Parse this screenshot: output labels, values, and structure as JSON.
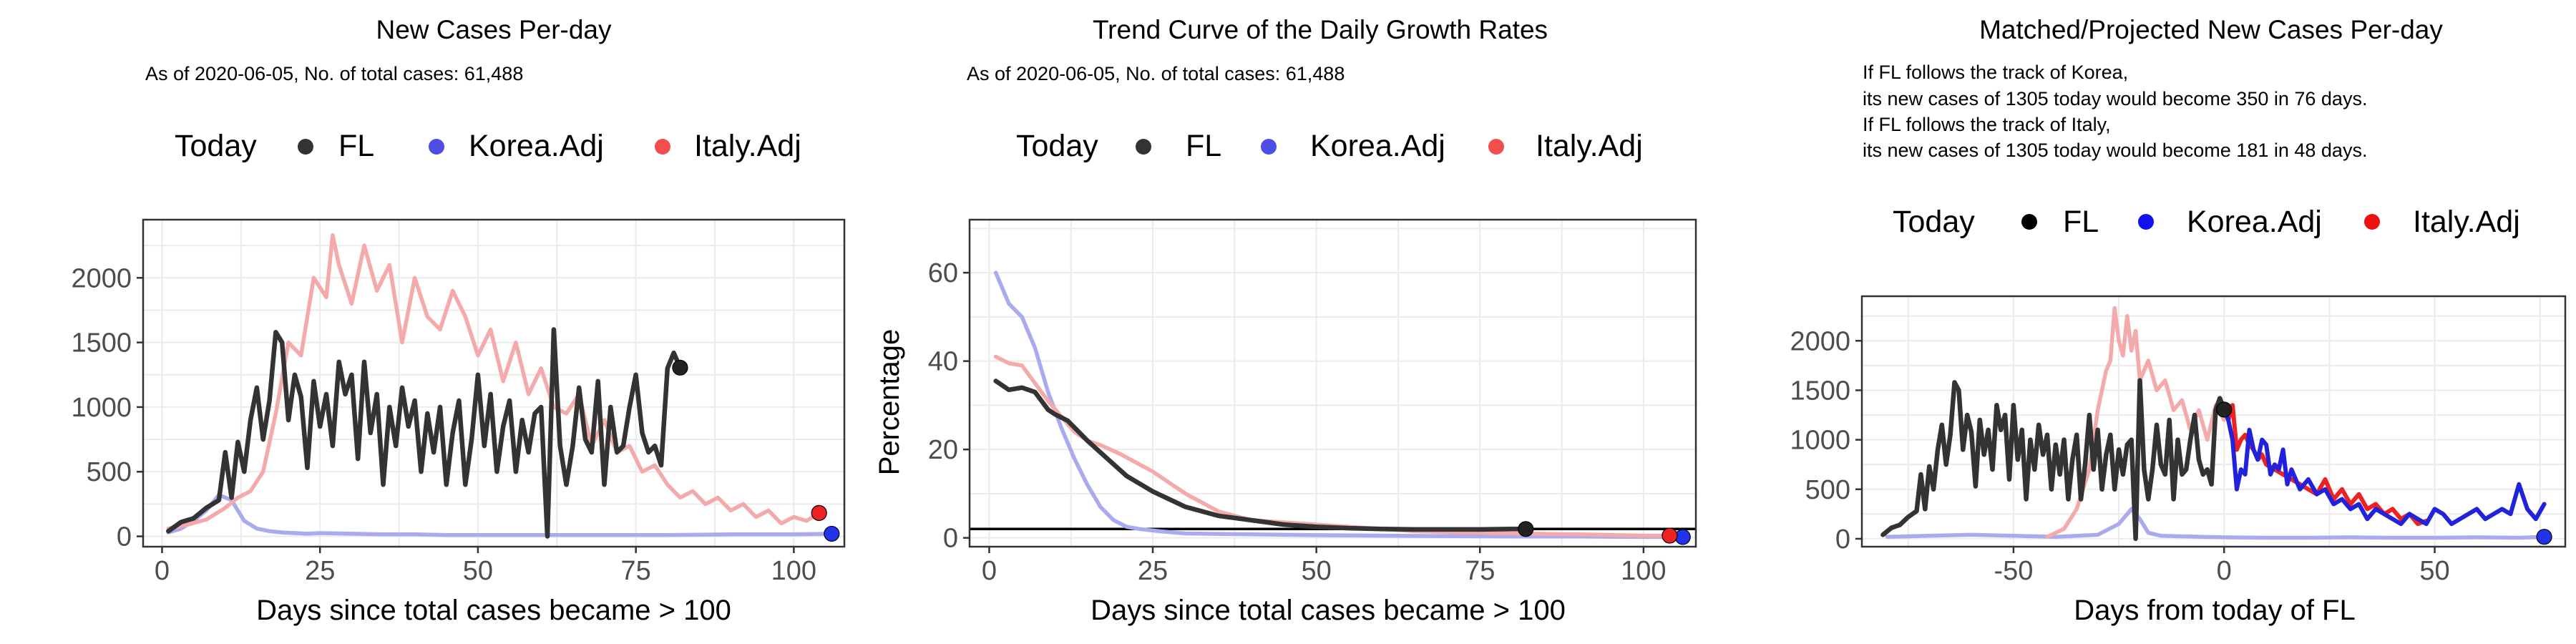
{
  "panels": [
    {
      "title": "New Cases Per-day",
      "subtitle_lines": [
        "As of 2020-06-05, No. of total cases: 61,488"
      ],
      "legend": {
        "title": "Today",
        "items": [
          "FL",
          "Korea.Adj",
          "Italy.Adj"
        ]
      },
      "xlabel": "Days since total cases became > 100",
      "ylabel": "",
      "xticks": [
        "0",
        "25",
        "50",
        "75",
        "100"
      ],
      "yticks": [
        "0",
        "500",
        "1000",
        "1500",
        "2000"
      ]
    },
    {
      "title": "Trend Curve of the Daily Growth Rates",
      "subtitle_lines": [
        "As of 2020-06-05, No. of total cases: 61,488"
      ],
      "legend": {
        "title": "Today",
        "items": [
          "FL",
          "Korea.Adj",
          "Italy.Adj"
        ]
      },
      "xlabel": "Days since total cases became > 100",
      "ylabel": "Percentage",
      "xticks": [
        "0",
        "25",
        "50",
        "75",
        "100"
      ],
      "yticks": [
        "0",
        "20",
        "40",
        "60"
      ]
    },
    {
      "title": "Matched/Projected New Cases Per-day",
      "subtitle_lines": [
        "If FL follows the track of Korea,",
        "its new cases of 1305 today would become 350 in 76 days.",
        "If FL follows the track of Italy,",
        "its new cases of 1305 today would become 181 in 48 days."
      ],
      "legend": {
        "title": "Today",
        "items": [
          "FL",
          "Korea.Adj",
          "Italy.Adj"
        ]
      },
      "xlabel": "Days from today of FL",
      "ylabel": "",
      "xticks": [
        "-50",
        "0",
        "50"
      ],
      "yticks": [
        "0",
        "500",
        "1000",
        "1500",
        "2000"
      ]
    }
  ],
  "colors": {
    "fl": "#333333",
    "korea": "#2222dd",
    "italy": "#ee2222",
    "korea_faint": "#aaaaee",
    "italy_faint": "#f4aaaa",
    "grid": "#ebebeb",
    "panel_border": "#333333"
  },
  "chart_data": [
    {
      "type": "line",
      "title": "New Cases Per-day",
      "xlabel": "Days since total cases became > 100",
      "ylabel": "",
      "xlim": [
        -3,
        108
      ],
      "ylim": [
        -80,
        2450
      ],
      "series": [
        {
          "name": "FL",
          "x": [
            1,
            3,
            5,
            7,
            9,
            10,
            11,
            12,
            13,
            14,
            15,
            16,
            17,
            18,
            19,
            20,
            21,
            22,
            23,
            24,
            25,
            26,
            27,
            28,
            29,
            30,
            31,
            32,
            33,
            34,
            35,
            36,
            37,
            38,
            39,
            40,
            41,
            42,
            43,
            44,
            45,
            46,
            47,
            48,
            49,
            50,
            51,
            52,
            53,
            54,
            55,
            56,
            57,
            58,
            59,
            60,
            61,
            62,
            63,
            64,
            65,
            66,
            67,
            68,
            69,
            70,
            71,
            72,
            73,
            74,
            75,
            76,
            77,
            78,
            79,
            80,
            81,
            82
          ],
          "y": [
            40,
            110,
            140,
            220,
            280,
            650,
            300,
            730,
            500,
            900,
            1150,
            750,
            1050,
            1580,
            1500,
            900,
            1250,
            1080,
            530,
            1200,
            850,
            1100,
            700,
            1350,
            1100,
            1250,
            600,
            1350,
            800,
            1100,
            400,
            1000,
            700,
            1150,
            850,
            1050,
            500,
            950,
            650,
            1000,
            400,
            800,
            1050,
            400,
            750,
            1250,
            700,
            1100,
            500,
            850,
            1050,
            500,
            900,
            650,
            950,
            1000,
            0,
            1600,
            700,
            400,
            700,
            1150,
            750,
            650,
            1200,
            400,
            1000,
            650,
            700,
            1000,
            1250,
            800,
            650,
            700,
            550,
            1300,
            1420,
            1305
          ]
        },
        {
          "name": "Korea.Adj",
          "x": [
            1,
            3,
            5,
            7,
            9,
            11,
            13,
            15,
            17,
            19,
            21,
            23,
            25,
            30,
            35,
            40,
            45,
            50,
            60,
            70,
            80,
            90,
            100,
            106
          ],
          "y": [
            30,
            60,
            120,
            200,
            320,
            280,
            120,
            60,
            40,
            30,
            25,
            20,
            25,
            20,
            15,
            15,
            10,
            10,
            10,
            10,
            10,
            15,
            15,
            20
          ]
        },
        {
          "name": "Italy.Adj",
          "x": [
            1,
            4,
            7,
            10,
            12,
            14,
            16,
            18,
            20,
            22,
            24,
            26,
            27,
            28,
            30,
            32,
            34,
            36,
            38,
            40,
            42,
            44,
            46,
            48,
            50,
            52,
            54,
            56,
            58,
            60,
            62,
            64,
            66,
            68,
            70,
            72,
            74,
            76,
            78,
            80,
            82,
            84,
            86,
            88,
            90,
            92,
            94,
            96,
            98,
            100,
            102,
            104
          ],
          "y": [
            60,
            90,
            130,
            220,
            300,
            350,
            500,
            950,
            1500,
            1400,
            2000,
            1850,
            2330,
            2100,
            1800,
            2250,
            1900,
            2100,
            1500,
            2000,
            1700,
            1600,
            1900,
            1700,
            1400,
            1600,
            1200,
            1500,
            1100,
            1300,
            1000,
            950,
            1100,
            700,
            900,
            650,
            700,
            500,
            550,
            400,
            300,
            350,
            250,
            300,
            200,
            250,
            150,
            200,
            100,
            150,
            120,
            181
          ]
        }
      ],
      "today_points": [
        {
          "name": "FL",
          "x": 82,
          "y": 1305
        },
        {
          "name": "Korea.Adj",
          "x": 106,
          "y": 20
        },
        {
          "name": "Italy.Adj",
          "x": 104,
          "y": 181
        }
      ]
    },
    {
      "type": "line",
      "title": "Trend Curve of the Daily Growth Rates",
      "xlabel": "Days since total cases became > 100",
      "ylabel": "Percentage",
      "xlim": [
        -3,
        108
      ],
      "ylim": [
        -2,
        72
      ],
      "hline": 2,
      "series": [
        {
          "name": "FL",
          "x": [
            1,
            3,
            5,
            7,
            9,
            10,
            12,
            15,
            18,
            21,
            25,
            30,
            35,
            40,
            45,
            50,
            55,
            60,
            65,
            70,
            75,
            80,
            82
          ],
          "y": [
            35.5,
            33.5,
            34,
            33,
            29,
            28,
            26.5,
            22,
            18,
            14,
            10.5,
            7,
            5,
            4,
            3,
            2.5,
            2.2,
            2,
            1.9,
            1.9,
            1.9,
            2,
            2
          ]
        },
        {
          "name": "Korea.Adj",
          "x": [
            1,
            3,
            5,
            7,
            9,
            11,
            13,
            15,
            17,
            19,
            21,
            23,
            26,
            30,
            40,
            50,
            60,
            70,
            80,
            90,
            100,
            106
          ],
          "y": [
            60,
            53,
            50,
            43,
            33,
            25,
            18,
            12,
            7,
            4,
            2.5,
            2,
            1.5,
            1,
            0.8,
            0.6,
            0.5,
            0.4,
            0.3,
            0.3,
            0.2,
            0.2
          ]
        },
        {
          "name": "Italy.Adj",
          "x": [
            1,
            3,
            5,
            7,
            9,
            11,
            13,
            15,
            17,
            20,
            25,
            30,
            35,
            40,
            45,
            50,
            55,
            60,
            65,
            70,
            80,
            90,
            100,
            104
          ],
          "y": [
            41,
            39.5,
            39,
            35,
            31,
            27.5,
            24,
            22,
            21,
            19,
            15,
            10,
            6,
            4,
            3.5,
            3,
            2.5,
            2,
            1.5,
            1.3,
            1,
            0.8,
            0.5,
            0.5
          ]
        }
      ],
      "today_points": [
        {
          "name": "FL",
          "x": 82,
          "y": 2
        },
        {
          "name": "Korea.Adj",
          "x": 106,
          "y": 0.2
        },
        {
          "name": "Italy.Adj",
          "x": 104,
          "y": 0.5
        }
      ]
    },
    {
      "type": "line",
      "title": "Matched/Projected New Cases Per-day",
      "xlabel": "Days from today of FL",
      "ylabel": "",
      "xlim": [
        -86,
        81
      ],
      "ylim": [
        -80,
        2450
      ],
      "series": [
        {
          "name": "FL",
          "x": [
            -81,
            -79,
            -77,
            -75,
            -73,
            -72,
            -71,
            -70,
            -69,
            -68,
            -67,
            -66,
            -65,
            -64,
            -63,
            -62,
            -61,
            -60,
            -59,
            -58,
            -57,
            -56,
            -55,
            -54,
            -53,
            -52,
            -51,
            -50,
            -49,
            -48,
            -47,
            -46,
            -45,
            -44,
            -43,
            -42,
            -41,
            -40,
            -39,
            -38,
            -37,
            -36,
            -35,
            -34,
            -33,
            -32,
            -31,
            -30,
            -29,
            -28,
            -27,
            -26,
            -25,
            -24,
            -23,
            -22,
            -21,
            -20,
            -19,
            -18,
            -17,
            -16,
            -15,
            -14,
            -13,
            -12,
            -11,
            -10,
            -9,
            -8,
            -7,
            -6,
            -5,
            -4,
            -3,
            -2,
            -1,
            0
          ],
          "y": [
            40,
            110,
            140,
            220,
            280,
            650,
            300,
            730,
            500,
            900,
            1150,
            750,
            1050,
            1580,
            1500,
            900,
            1250,
            1080,
            530,
            1200,
            850,
            1100,
            700,
            1350,
            1100,
            1250,
            600,
            1350,
            800,
            1100,
            400,
            1000,
            700,
            1150,
            850,
            1050,
            500,
            950,
            650,
            1000,
            400,
            800,
            1050,
            400,
            750,
            1250,
            700,
            1100,
            500,
            850,
            1050,
            500,
            900,
            650,
            950,
            1000,
            0,
            1600,
            700,
            400,
            700,
            1150,
            750,
            650,
            1200,
            400,
            1000,
            650,
            700,
            1000,
            1250,
            800,
            650,
            700,
            550,
            1300,
            1420,
            1305
          ]
        },
        {
          "name": "Korea.Adj faint",
          "x": [
            -80,
            -70,
            -60,
            -50,
            -40,
            -30,
            -25,
            -22,
            -20,
            -18,
            -15,
            -10,
            -5,
            0,
            10,
            20,
            30,
            40,
            50,
            60,
            70,
            76
          ],
          "y": [
            20,
            30,
            40,
            30,
            20,
            40,
            150,
            300,
            200,
            60,
            30,
            25,
            20,
            15,
            10,
            10,
            15,
            10,
            10,
            15,
            10,
            20
          ]
        },
        {
          "name": "Italy.Adj faint",
          "x": [
            -42,
            -38,
            -35,
            -32,
            -30,
            -28,
            -27,
            -26,
            -25,
            -24,
            -23,
            -22,
            -21,
            -20,
            -18,
            -16,
            -14,
            -12,
            -10,
            -8,
            -6,
            -4,
            -2,
            0
          ],
          "y": [
            20,
            100,
            300,
            700,
            1300,
            1700,
            1800,
            2330,
            2000,
            1850,
            2250,
            1900,
            2100,
            1600,
            1800,
            1500,
            1600,
            1300,
            1400,
            1100,
            1300,
            1000,
            1350,
            1200
          ]
        },
        {
          "name": "Korea.Adj",
          "x": [
            0,
            1,
            2,
            3,
            4,
            5,
            6,
            7,
            8,
            9,
            10,
            11,
            12,
            13,
            14,
            15,
            16,
            18,
            20,
            22,
            24,
            26,
            28,
            30,
            32,
            34,
            36,
            38,
            40,
            42,
            44,
            46,
            48,
            50,
            52,
            54,
            56,
            58,
            60,
            62,
            64,
            66,
            68,
            70,
            72,
            74,
            76
          ],
          "y": [
            1305,
            1200,
            1000,
            500,
            700,
            650,
            1100,
            900,
            800,
            1000,
            950,
            650,
            750,
            700,
            900,
            550,
            700,
            500,
            600,
            450,
            500,
            350,
            400,
            300,
            350,
            200,
            300,
            250,
            200,
            150,
            250,
            200,
            150,
            300,
            250,
            150,
            200,
            250,
            300,
            200,
            250,
            300,
            250,
            550,
            300,
            200,
            350
          ]
        },
        {
          "name": "Italy.Adj",
          "x": [
            0,
            1,
            2,
            3,
            4,
            5,
            6,
            7,
            8,
            9,
            10,
            12,
            14,
            16,
            18,
            20,
            22,
            24,
            26,
            28,
            30,
            32,
            34,
            36,
            38,
            40,
            42,
            44,
            46,
            48
          ],
          "y": [
            1305,
            1200,
            1350,
            900,
            1000,
            1050,
            950,
            900,
            800,
            850,
            750,
            700,
            650,
            600,
            550,
            500,
            450,
            600,
            400,
            500,
            350,
            450,
            300,
            350,
            250,
            300,
            200,
            250,
            150,
            181
          ]
        }
      ],
      "today_points": [
        {
          "name": "FL",
          "x": 0,
          "y": 1305
        },
        {
          "name": "Korea.Adj",
          "x": 76,
          "y": 20
        }
      ]
    }
  ]
}
